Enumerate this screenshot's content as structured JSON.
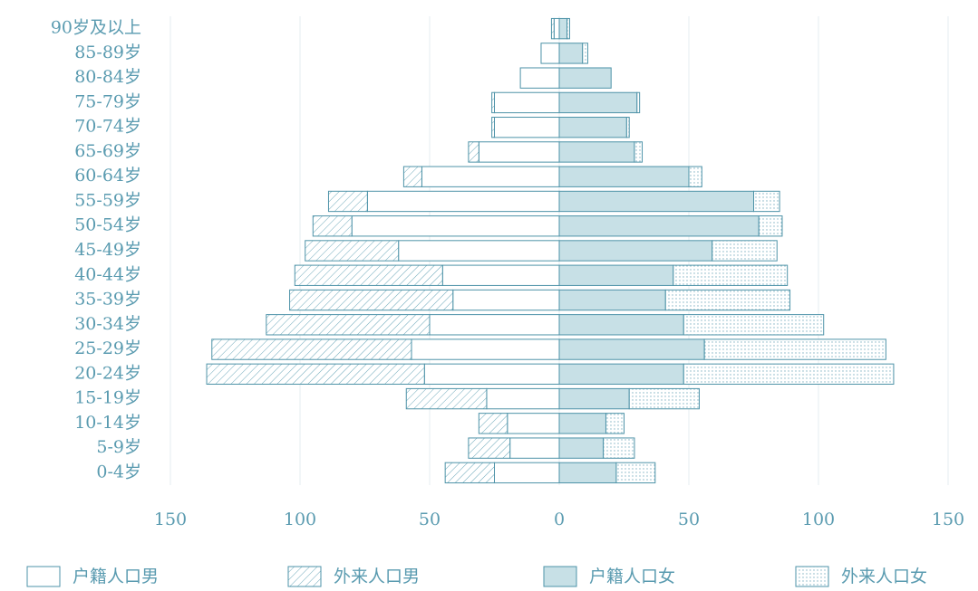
{
  "chart_data": {
    "type": "pyramid",
    "categories": [
      "90岁及以上",
      "85-89岁",
      "80-84岁",
      "75-79岁",
      "70-74岁",
      "65-69岁",
      "60-64岁",
      "55-59岁",
      "50-54岁",
      "45-49岁",
      "40-44岁",
      "35-39岁",
      "30-34岁",
      "25-29岁",
      "20-24岁",
      "15-19岁",
      "10-14岁",
      "5-9岁",
      "0-4岁"
    ],
    "series": [
      {
        "name": "户籍人口男",
        "color": "#ffffff",
        "pattern": "none",
        "stack": "male",
        "values": [
          -2,
          -7,
          -15,
          -25,
          -25,
          -31,
          -53,
          -74,
          -80,
          -62,
          -45,
          -41,
          -50,
          -57,
          -52,
          -28,
          -20,
          -19,
          -25
        ]
      },
      {
        "name": "外来人口男",
        "color": "#ffffff",
        "pattern": "hatch",
        "stack": "male",
        "values": [
          -1,
          0,
          0,
          -1,
          -1,
          -4,
          -7,
          -15,
          -15,
          -36,
          -57,
          -63,
          -63,
          -77,
          -84,
          -31,
          -11,
          -16,
          -19
        ]
      },
      {
        "name": "户籍人口女",
        "color": "#c7e0e6",
        "pattern": "none",
        "stack": "female",
        "values": [
          3,
          9,
          20,
          30,
          26,
          29,
          50,
          75,
          77,
          59,
          44,
          41,
          48,
          56,
          48,
          27,
          18,
          17,
          22
        ]
      },
      {
        "name": "外来人口女",
        "color": "#ffffff",
        "pattern": "dots",
        "stack": "female",
        "values": [
          1,
          2,
          0,
          1,
          1,
          3,
          5,
          10,
          9,
          25,
          44,
          48,
          54,
          70,
          81,
          27,
          7,
          12,
          15
        ]
      }
    ],
    "xlim": [
      -150,
      150
    ],
    "xticks": [
      {
        "value": -150,
        "label": "150"
      },
      {
        "value": -100,
        "label": "100"
      },
      {
        "value": -50,
        "label": "50"
      },
      0,
      50,
      100,
      150
    ],
    "grid": true,
    "legend": "bottom"
  }
}
